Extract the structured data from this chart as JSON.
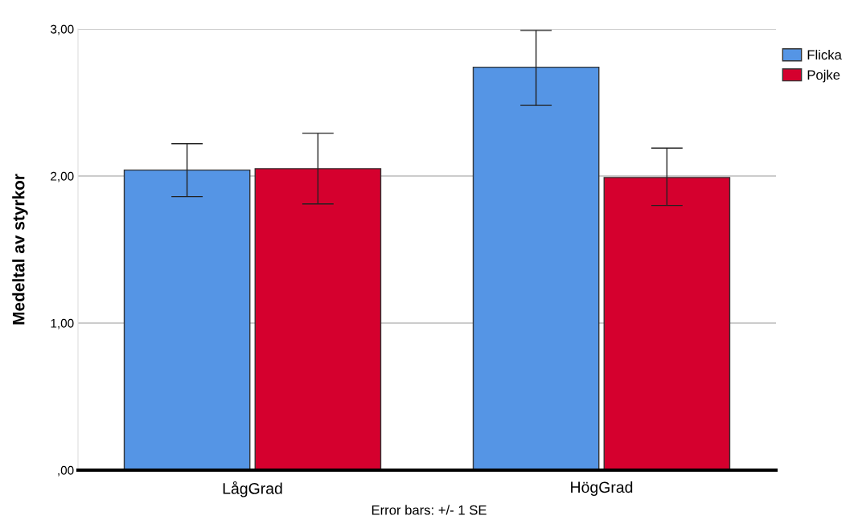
{
  "chart_data": {
    "type": "bar",
    "ylabel": "Medeltal av styrkor",
    "categories": [
      "LågGrad",
      "HögGrad"
    ],
    "series": [
      {
        "name": "Flicka",
        "color": "#5595e5",
        "values": [
          2.04,
          2.74
        ],
        "errors": [
          [
            1.86,
            2.22
          ],
          [
            2.48,
            2.99
          ]
        ]
      },
      {
        "name": "Pojke",
        "color": "#d5002e",
        "values": [
          2.05,
          1.99
        ],
        "errors": [
          [
            1.81,
            2.29
          ],
          [
            1.8,
            2.19
          ]
        ]
      }
    ],
    "ylim": [
      0,
      3.0
    ],
    "yticks": [
      {
        "value": 0,
        "label": ",00"
      },
      {
        "value": 1,
        "label": "1,00"
      },
      {
        "value": 2,
        "label": "2,00"
      },
      {
        "value": 3,
        "label": "3,00"
      }
    ],
    "grid": "y",
    "legend": "top right",
    "annotations": [
      "Error bars: +/- 1 SE"
    ]
  }
}
